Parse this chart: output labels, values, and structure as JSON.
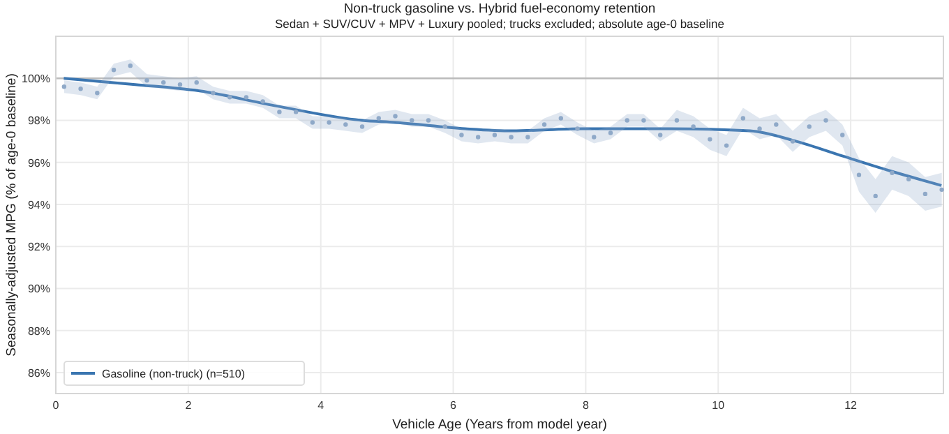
{
  "chart_data": {
    "type": "scatter",
    "title": "Non-truck gasoline vs. Hybrid fuel-economy retention",
    "subtitle": "Sedan + SUV/CUV + MPV + Luxury pooled; trucks excluded; absolute age-0 baseline",
    "xlabel": "Vehicle Age (Years from model year)",
    "ylabel": "Seasonally-adjusted MPG  (% of age-0 baseline)",
    "x": [
      0.125,
      0.375,
      0.625,
      0.875,
      1.125,
      1.375,
      1.625,
      1.875,
      2.125,
      2.375,
      2.625,
      2.875,
      3.125,
      3.375,
      3.625,
      3.875,
      4.125,
      4.375,
      4.625,
      4.875,
      5.125,
      5.375,
      5.625,
      5.875,
      6.125,
      6.375,
      6.625,
      6.875,
      7.125,
      7.375,
      7.625,
      7.875,
      8.125,
      8.375,
      8.625,
      8.875,
      9.125,
      9.375,
      9.625,
      9.875,
      10.125,
      10.375,
      10.625,
      10.875,
      11.125,
      11.375,
      11.625,
      11.875,
      12.125,
      12.375,
      12.625,
      12.875,
      13.125,
      13.375
    ],
    "series": [
      {
        "color": "#8fa9c8",
        "marker": "circle",
        "values": [
          99.6,
          99.5,
          99.3,
          100.4,
          100.6,
          99.9,
          99.8,
          99.7,
          99.8,
          99.3,
          99.1,
          99.1,
          98.9,
          98.4,
          98.4,
          97.9,
          97.9,
          97.8,
          97.7,
          98.1,
          98.2,
          98.0,
          98.0,
          97.7,
          97.3,
          97.2,
          97.3,
          97.2,
          97.2,
          97.8,
          98.1,
          97.6,
          97.2,
          97.4,
          98.0,
          98.0,
          97.3,
          98.0,
          97.7,
          97.1,
          96.8,
          98.1,
          97.6,
          97.8,
          97.0,
          97.7,
          98.0,
          97.3,
          95.4,
          94.4,
          95.5,
          95.2,
          94.5,
          94.7
        ],
        "lower": [
          99.3,
          99.2,
          99.0,
          100.1,
          100.3,
          99.6,
          99.5,
          99.4,
          99.5,
          99.0,
          98.8,
          98.8,
          98.6,
          98.1,
          98.1,
          97.6,
          97.6,
          97.5,
          97.4,
          97.8,
          97.9,
          97.7,
          97.7,
          97.4,
          97.0,
          96.9,
          97.0,
          96.9,
          96.9,
          97.5,
          97.8,
          97.3,
          96.9,
          97.1,
          97.7,
          97.7,
          97.0,
          97.5,
          97.2,
          96.6,
          96.3,
          97.6,
          97.1,
          97.3,
          96.5,
          97.2,
          97.5,
          96.8,
          94.6,
          93.6,
          94.7,
          94.4,
          93.7,
          93.9
        ],
        "upper": [
          99.9,
          99.8,
          99.6,
          100.7,
          100.9,
          100.2,
          100.1,
          100.0,
          100.1,
          99.6,
          99.4,
          99.4,
          99.2,
          98.7,
          98.7,
          98.2,
          98.2,
          98.1,
          98.0,
          98.4,
          98.5,
          98.3,
          98.3,
          98.0,
          97.6,
          97.5,
          97.6,
          97.5,
          97.5,
          98.1,
          98.4,
          97.9,
          97.5,
          97.7,
          98.3,
          98.3,
          97.6,
          98.5,
          98.2,
          97.6,
          97.3,
          98.6,
          98.1,
          98.3,
          97.5,
          98.2,
          98.5,
          97.8,
          96.2,
          95.2,
          96.3,
          96.0,
          95.3,
          95.5
        ]
      },
      {
        "type": "line",
        "marker": "none",
        "name": "Gasoline (non-truck)  (n=510)",
        "color": "#3a75b0",
        "x": [
          0.12,
          1.2,
          2.17,
          3.3,
          4.62,
          5.13,
          6.18,
          6.89,
          7.95,
          9.28,
          10.48,
          11.18,
          11.88,
          12.59,
          13.37
        ],
        "values": [
          100.0,
          99.7,
          99.4,
          98.7,
          98.0,
          97.9,
          97.6,
          97.5,
          97.6,
          97.6,
          97.5,
          97.0,
          96.3,
          95.6,
          94.9
        ]
      }
    ],
    "xlim": [
      0,
      13.4
    ],
    "xticks": [
      0,
      2,
      4,
      6,
      8,
      10,
      12
    ],
    "ylim": [
      85,
      102
    ],
    "yticks": [
      {
        "value": 86,
        "label": "86%"
      },
      {
        "value": 88,
        "label": "88%"
      },
      {
        "value": 90,
        "label": "90%"
      },
      {
        "value": 92,
        "label": "92%"
      },
      {
        "value": 94,
        "label": "94%"
      },
      {
        "value": 96,
        "label": "96%"
      },
      {
        "value": 98,
        "label": "98%"
      },
      {
        "value": 100,
        "label": "100%"
      }
    ],
    "ref_lines": [
      {
        "axis": "y",
        "value": 100,
        "color": "#bbbbbb"
      }
    ],
    "grid": true,
    "legend": "bottom left",
    "line_style": "solid"
  }
}
